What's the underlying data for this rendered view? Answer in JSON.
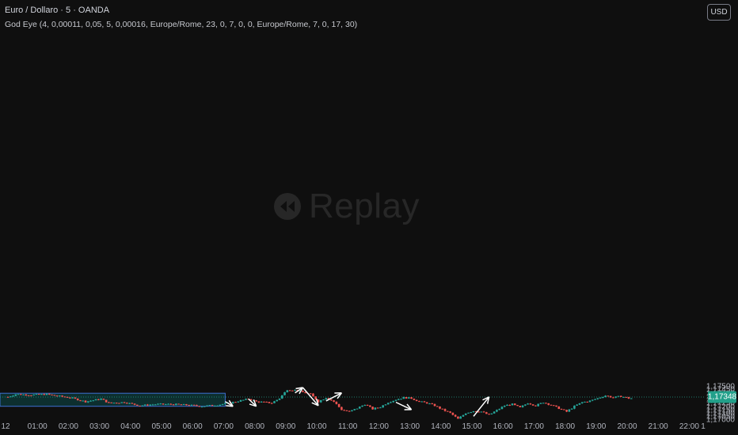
{
  "header": {
    "symbol_line": "Euro / Dollaro · 5 · OANDA",
    "indicator_line": "God Eye (4, 0,00011, 0,05, 5, 0,00016, Europe/Rome, 23, 0, 7, 0, 0, Europe/Rome, 7, 0, 17, 30)"
  },
  "currency_button": "USD",
  "watermark": "Replay",
  "colors": {
    "up": "#26a69a",
    "down": "#ef5350",
    "zone_fill": "#0d2f2f",
    "zone_border": "#3d6fd1",
    "arrow": "#ffffff",
    "last_price": "#22a08a"
  },
  "chart_data": {
    "type": "candlestick",
    "ylim": [
      1.1697,
      1.1754
    ],
    "y_ticks": [
      "1,17500",
      "1,17450",
      "1,17400",
      "1,17350",
      "1,17300",
      "1,17250",
      "1,17200",
      "1,17150",
      "1,17100",
      "1,17050",
      "1,17000"
    ],
    "x_ticks": [
      "12",
      "01:00",
      "02:00",
      "03:00",
      "04:00",
      "05:00",
      "06:00",
      "07:00",
      "08:00",
      "09:00",
      "10:00",
      "11:00",
      "12:00",
      "13:00",
      "14:00",
      "15:00",
      "16:00",
      "17:00",
      "18:00",
      "19:00",
      "20:00",
      "21:00",
      "22:00",
      "1"
    ],
    "last_price": "1,17348",
    "zone": {
      "start": "00:00",
      "end": "07:00",
      "high": 1.17405,
      "low": 1.1721
    },
    "close_path": [
      [
        "00:00",
        1.1735
      ],
      [
        "00:15",
        1.1739
      ],
      [
        "00:45",
        1.1738
      ],
      [
        "01:15",
        1.1739
      ],
      [
        "01:30",
        1.1737
      ],
      [
        "02:00",
        1.1734
      ],
      [
        "02:30",
        1.1728
      ],
      [
        "03:00",
        1.1732
      ],
      [
        "03:15",
        1.1726
      ],
      [
        "03:45",
        1.1727
      ],
      [
        "04:15",
        1.1722
      ],
      [
        "04:45",
        1.1724
      ],
      [
        "05:15",
        1.1724
      ],
      [
        "05:45",
        1.1723
      ],
      [
        "06:15",
        1.1721
      ],
      [
        "06:45",
        1.1723
      ],
      [
        "07:15",
        1.1727
      ],
      [
        "07:45",
        1.1732
      ],
      [
        "08:00",
        1.1728
      ],
      [
        "08:30",
        1.1726
      ],
      [
        "08:45",
        1.1733
      ],
      [
        "09:00",
        1.1746
      ],
      [
        "09:15",
        1.1745
      ],
      [
        "09:30",
        1.1742
      ],
      [
        "09:45",
        1.1739
      ],
      [
        "10:00",
        1.1728
      ],
      [
        "10:15",
        1.1734
      ],
      [
        "10:30",
        1.1728
      ],
      [
        "10:45",
        1.1716
      ],
      [
        "11:00",
        1.1713
      ],
      [
        "11:15",
        1.1718
      ],
      [
        "11:30",
        1.1724
      ],
      [
        "11:45",
        1.1717
      ],
      [
        "12:00",
        1.172
      ],
      [
        "12:15",
        1.1727
      ],
      [
        "12:30",
        1.1731
      ],
      [
        "12:45",
        1.1734
      ],
      [
        "13:00",
        1.1733
      ],
      [
        "13:15",
        1.1728
      ],
      [
        "13:30",
        1.1726
      ],
      [
        "13:45",
        1.1722
      ],
      [
        "14:00",
        1.1716
      ],
      [
        "14:15",
        1.1711
      ],
      [
        "14:30",
        1.1702
      ],
      [
        "14:45",
        1.1711
      ],
      [
        "15:00",
        1.1714
      ],
      [
        "15:15",
        1.1713
      ],
      [
        "15:30",
        1.1708
      ],
      [
        "15:45",
        1.1715
      ],
      [
        "16:00",
        1.1722
      ],
      [
        "16:15",
        1.1724
      ],
      [
        "16:30",
        1.1719
      ],
      [
        "16:45",
        1.1726
      ],
      [
        "17:00",
        1.1722
      ],
      [
        "17:15",
        1.1727
      ],
      [
        "17:30",
        1.1723
      ],
      [
        "17:45",
        1.1718
      ],
      [
        "18:00",
        1.1713
      ],
      [
        "18:15",
        1.1721
      ],
      [
        "18:30",
        1.1727
      ],
      [
        "18:45",
        1.1729
      ],
      [
        "19:00",
        1.1733
      ],
      [
        "19:15",
        1.1737
      ],
      [
        "19:30",
        1.1734
      ],
      [
        "19:45",
        1.1736
      ],
      [
        "20:00",
        1.1733
      ]
    ],
    "drawn_arrows": [
      {
        "from": [
          "07:00",
          1.1728
        ],
        "to": [
          "07:15",
          1.1721
        ]
      },
      {
        "from": [
          "07:45",
          1.1732
        ],
        "to": [
          "08:00",
          1.1721
        ]
      },
      {
        "from": [
          "09:15",
          1.1741
        ],
        "to": [
          "09:30",
          1.1749
        ]
      },
      {
        "from": [
          "09:30",
          1.1749
        ],
        "to": [
          "10:00",
          1.1722
        ]
      },
      {
        "from": [
          "10:15",
          1.1729
        ],
        "to": [
          "10:45",
          1.1741
        ]
      },
      {
        "from": [
          "12:30",
          1.1727
        ],
        "to": [
          "13:00",
          1.1716
        ]
      },
      {
        "from": [
          "15:00",
          1.1706
        ],
        "to": [
          "15:30",
          1.1735
        ]
      }
    ]
  }
}
